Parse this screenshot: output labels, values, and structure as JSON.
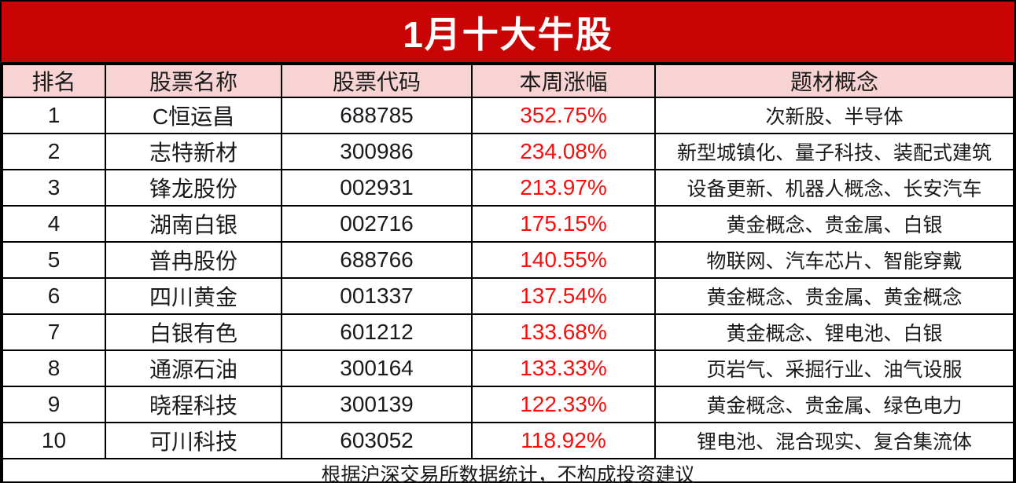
{
  "title": "1月十大牛股",
  "table": {
    "headers": [
      "排名",
      "股票名称",
      "股票代码",
      "本周涨幅",
      "题材概念"
    ],
    "rows": [
      {
        "rank": "1",
        "name": "C恒运昌",
        "code": "688785",
        "change": "352.75%",
        "concepts": "次新股、半导体"
      },
      {
        "rank": "2",
        "name": "志特新材",
        "code": "300986",
        "change": "234.08%",
        "concepts": "新型城镇化、量子科技、装配式建筑"
      },
      {
        "rank": "3",
        "name": "锋龙股份",
        "code": "002931",
        "change": "213.97%",
        "concepts": "设备更新、机器人概念、长安汽车"
      },
      {
        "rank": "4",
        "name": "湖南白银",
        "code": "002716",
        "change": "175.15%",
        "concepts": "黄金概念、贵金属、白银"
      },
      {
        "rank": "5",
        "name": "普冉股份",
        "code": "688766",
        "change": "140.55%",
        "concepts": "物联网、汽车芯片、智能穿戴"
      },
      {
        "rank": "6",
        "name": "四川黄金",
        "code": "001337",
        "change": "137.54%",
        "concepts": "黄金概念、贵金属、黄金概念"
      },
      {
        "rank": "7",
        "name": "白银有色",
        "code": "601212",
        "change": "133.68%",
        "concepts": "黄金概念、锂电池、白银"
      },
      {
        "rank": "8",
        "name": "通源石油",
        "code": "300164",
        "change": "133.33%",
        "concepts": "页岩气、采掘行业、油气设服"
      },
      {
        "rank": "9",
        "name": "晓程科技",
        "code": "300139",
        "change": "122.33%",
        "concepts": "黄金概念、贵金属、绿色电力"
      },
      {
        "rank": "10",
        "name": "可川科技",
        "code": "603052",
        "change": "118.92%",
        "concepts": "锂电池、混合现实、复合集流体"
      }
    ],
    "footer": "根据沪深交易所数据统计，不构成投资建议"
  },
  "colors": {
    "banner_bg": "#c80404",
    "header_bg": "#f8d3d4",
    "change_text": "#fa0d0d",
    "text": "#1a1a1a"
  }
}
